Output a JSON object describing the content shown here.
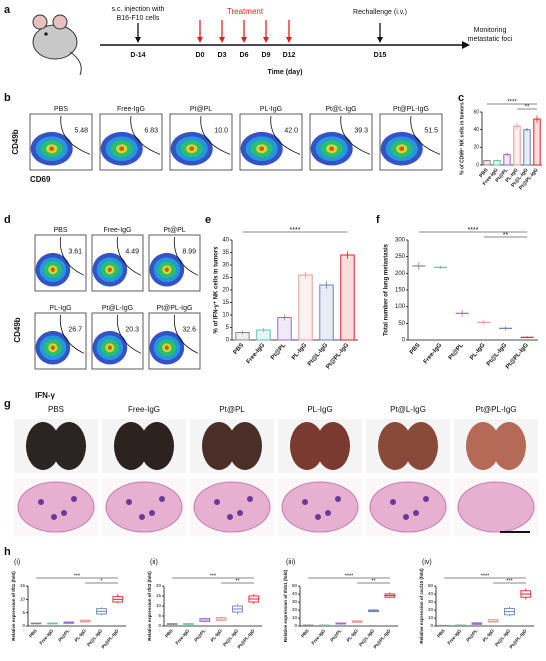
{
  "timeline": {
    "panel": "a",
    "injection": [
      "s.c. injection with",
      "B16-F10 cells"
    ],
    "treatment": "Treatment",
    "days": [
      "D-14",
      "D0",
      "D3",
      "D6",
      "D9",
      "D12",
      "D15"
    ],
    "rechallenge": "Rechallenge (i.v.)",
    "monitoring": [
      "Monitoring",
      "metastatic foci"
    ],
    "axis_label": "Time (day)"
  },
  "flow_b": {
    "panel": "b",
    "y_label": "CD49b",
    "x_label": "CD69",
    "groups": [
      "PBS",
      "Free-IgG",
      "Pt@PL",
      "PL-IgG",
      "Pt@L-IgG",
      "Pt@PL-IgG"
    ],
    "percentages": [
      "5.48",
      "6.83",
      "10.0",
      "42.0",
      "39.3",
      "51.5"
    ]
  },
  "flow_d": {
    "panel": "d",
    "y_label": "CD49b",
    "x_label": "IFN-γ",
    "groups": [
      "PBS",
      "Free-IgG",
      "Pt@PL",
      "PL-IgG",
      "Pt@L-IgG",
      "Pt@PL-IgG"
    ],
    "percentages": [
      "3.61",
      "4.49",
      "8.99",
      "26.7",
      "20.3",
      "32.6"
    ]
  },
  "histology": {
    "panel": "g",
    "groups": [
      "PBS",
      "Free-IgG",
      "Pt@PL",
      "PL-IgG",
      "Pt@L-IgG",
      "Pt@PL-IgG"
    ]
  },
  "chart_data": [
    {
      "type": "bar",
      "panel": "c",
      "y_label": "% of CD69⁺ NK cells in tumors",
      "categories": [
        "PBS",
        "Free-IgG",
        "Pt@PL",
        "PL-IgG",
        "Pt@L-IgG",
        "Pt@PL-IgG"
      ],
      "colors": [
        "#888888",
        "#5cc4b0",
        "#9a6bc4",
        "#e89a9a",
        "#6a7fb8",
        "#e02020"
      ],
      "values": [
        5,
        5,
        12,
        44,
        40,
        52
      ],
      "errors": [
        1,
        1,
        2,
        4,
        2,
        4
      ],
      "ylim": [
        0,
        60
      ],
      "yticks": [
        0,
        20,
        40,
        60
      ],
      "annotations": [
        "****",
        "**"
      ]
    },
    {
      "type": "bar",
      "panel": "e",
      "y_label": "% of IFN-γ⁺ NK cells in tumors",
      "categories": [
        "PBS",
        "Free-IgG",
        "Pt@PL",
        "PL-IgG",
        "Pt@L-IgG",
        "Pt@PL-IgG"
      ],
      "colors": [
        "#888888",
        "#5cc4b0",
        "#9a6bc4",
        "#e89a9a",
        "#6a7fb8",
        "#e02020"
      ],
      "values": [
        3,
        4,
        9,
        26,
        22,
        34
      ],
      "errors": [
        0.8,
        0.8,
        1.2,
        1.2,
        1.5,
        1.5
      ],
      "ylim": [
        0,
        40
      ],
      "yticks": [
        0,
        5,
        10,
        15,
        20,
        25,
        30,
        35,
        40
      ],
      "annotations": [
        "****"
      ]
    },
    {
      "type": "dot",
      "panel": "f",
      "y_label": "Total number of lung metastasis",
      "categories": [
        "PBS",
        "Free-IgG",
        "Pt@PL",
        "PL-IgG",
        "Pt@L-IgG",
        "Pt@PL-IgG"
      ],
      "colors": [
        "#888888",
        "#5cc4b0",
        "#9a6bc4",
        "#e89a9a",
        "#6a7fb8",
        "#e02020"
      ],
      "values": [
        222,
        218,
        80,
        53,
        35,
        8
      ],
      "errors": [
        12,
        5,
        10,
        8,
        6,
        3
      ],
      "ylim": [
        0,
        300
      ],
      "yticks": [
        0,
        50,
        100,
        150,
        200,
        250,
        300
      ],
      "annotations": [
        "****",
        "**"
      ]
    },
    {
      "type": "box",
      "panel": "h",
      "sublabel": "(i)",
      "y_label": "Relative expression of Ifit1 (fold)",
      "categories": [
        "PBS",
        "Free-IgG",
        "Pt@PL",
        "PL-IgG",
        "Pt@L-IgG",
        "Pt@PL-IgG"
      ],
      "colors": [
        "#888888",
        "#5cc4b0",
        "#9a6bc4",
        "#e89a9a",
        "#6a7fb8",
        "#e02020"
      ],
      "median": [
        1,
        1,
        1.3,
        1.8,
        5.5,
        10
      ],
      "q1": [
        0.8,
        0.8,
        1,
        1.5,
        4.5,
        9
      ],
      "q3": [
        1.1,
        1.1,
        1.5,
        2.2,
        6.5,
        11
      ],
      "whisker_low": [
        0.7,
        0.7,
        0.9,
        1.2,
        4,
        8.5
      ],
      "whisker_high": [
        1.2,
        1.2,
        1.7,
        2.5,
        7,
        12
      ],
      "ylim": [
        0,
        15
      ],
      "yticks": [
        0,
        5,
        10,
        15
      ],
      "annotations": [
        "***",
        "*"
      ]
    },
    {
      "type": "box",
      "sublabel": "(ii)",
      "y_label": "Relative expression of Ifit3 (fold)",
      "categories": [
        "PBS",
        "Free-IgG",
        "Pt@PL",
        "PL-IgG",
        "Pt@L-IgG",
        "Pt@PL-IgG"
      ],
      "colors": [
        "#888888",
        "#5cc4b0",
        "#9a6bc4",
        "#e89a9a",
        "#6a7fb8",
        "#e02020"
      ],
      "median": [
        1,
        1,
        3,
        3.5,
        8.5,
        13.5
      ],
      "q1": [
        0.8,
        0.8,
        2.2,
        2.8,
        7,
        12
      ],
      "q3": [
        1.2,
        1.2,
        3.8,
        4.2,
        10,
        15
      ],
      "whisker_low": [
        0.6,
        0.6,
        1.8,
        2.4,
        6,
        11
      ],
      "whisker_high": [
        1.4,
        1.4,
        4.2,
        4.8,
        11,
        16
      ],
      "ylim": [
        0,
        20
      ],
      "yticks": [
        0,
        5,
        10,
        15,
        20
      ],
      "annotations": [
        "***",
        "**"
      ]
    },
    {
      "type": "box",
      "sublabel": "(iii)",
      "y_label": "Relative expression of Ifnb1 (fold)",
      "categories": [
        "PBS",
        "Free-IgG",
        "Pt@PL",
        "PL-IgG",
        "Pt@L-IgG",
        "Pt@PL-IgG"
      ],
      "colors": [
        "#888888",
        "#5cc4b0",
        "#9a6bc4",
        "#e89a9a",
        "#6a7fb8",
        "#e02020"
      ],
      "median": [
        1,
        1,
        3,
        5.5,
        19,
        38
      ],
      "q1": [
        0.8,
        0.8,
        2.5,
        4.5,
        18,
        36
      ],
      "q3": [
        1.2,
        1.2,
        3.8,
        6.5,
        20,
        40
      ],
      "whisker_low": [
        0.6,
        0.6,
        2,
        4,
        17,
        35
      ],
      "whisker_high": [
        1.4,
        1.4,
        4.5,
        7.5,
        21,
        42
      ],
      "ylim": [
        0,
        50
      ],
      "yticks": [
        0,
        10,
        20,
        30,
        40,
        50
      ],
      "annotations": [
        "****",
        "**"
      ]
    },
    {
      "type": "box",
      "sublabel": "(iv)",
      "y_label": "Relative expression of cxcl10 (fold)",
      "categories": [
        "PBS",
        "Free-IgG",
        "Pt@PL",
        "PL-IgG",
        "Pt@L-IgG",
        "Pt@PL-IgG"
      ],
      "colors": [
        "#888888",
        "#5cc4b0",
        "#9a6bc4",
        "#e89a9a",
        "#6a7fb8",
        "#e02020"
      ],
      "median": [
        0.5,
        1,
        3,
        6,
        18,
        40
      ],
      "q1": [
        0.3,
        0.8,
        2,
        5,
        14,
        36
      ],
      "q3": [
        0.8,
        1.3,
        4,
        8,
        22,
        44
      ],
      "whisker_low": [
        0.2,
        0.6,
        1.5,
        4,
        12,
        33
      ],
      "whisker_high": [
        1,
        1.6,
        5,
        9,
        24,
        47
      ],
      "ylim": [
        0,
        50
      ],
      "yticks": [
        0,
        10,
        20,
        30,
        40,
        50
      ],
      "annotations": [
        "****",
        "***"
      ]
    }
  ]
}
